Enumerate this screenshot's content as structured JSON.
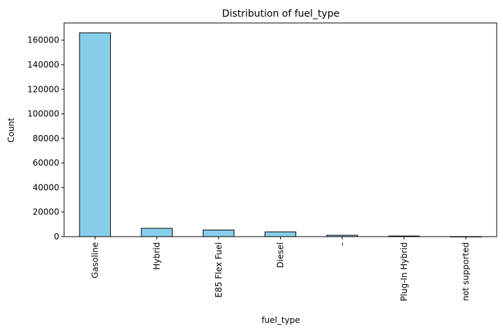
{
  "chart_data": {
    "type": "bar",
    "title": "Distribution of fuel_type",
    "xlabel": "fuel_type",
    "ylabel": "Count",
    "categories": [
      "Gasoline",
      "Hybrid",
      "E85 Flex Fuel",
      "Diesel",
      "–",
      "Plug-In Hybrid",
      "not supported"
    ],
    "values": [
      166000,
      6800,
      5400,
      3900,
      1100,
      500,
      50
    ],
    "ylim": [
      0,
      174000
    ],
    "yticks": [
      0,
      20000,
      40000,
      60000,
      80000,
      100000,
      120000,
      140000,
      160000
    ],
    "bar_color": "#87ceeb",
    "edge_color": "#000000",
    "grid": false,
    "legend": false
  }
}
